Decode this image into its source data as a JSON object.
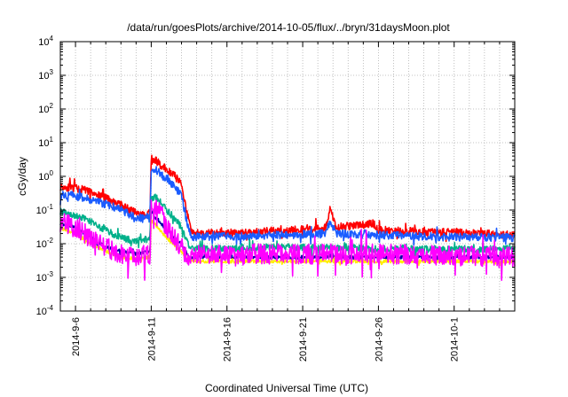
{
  "chart_data": {
    "type": "line",
    "title": "/data/run/goesPlots/archive/2014-10-05/flux/../bryn/31daysMoon.plot",
    "xlabel": "Coordinated Universal Time (UTC)",
    "ylabel": "cGy/day",
    "x_scale": "time",
    "xlim": [
      "2014-09-05",
      "2014-10-05"
    ],
    "y_scale": "log",
    "ylim": [
      0.0001,
      10000
    ],
    "y_ticks": [
      {
        "value": 0.0001,
        "base": "10",
        "exp": "-4"
      },
      {
        "value": 0.001,
        "base": "10",
        "exp": "-3"
      },
      {
        "value": 0.01,
        "base": "10",
        "exp": "-2"
      },
      {
        "value": 0.1,
        "base": "10",
        "exp": "-1"
      },
      {
        "value": 1,
        "base": "10",
        "exp": "0"
      },
      {
        "value": 10,
        "base": "10",
        "exp": "1"
      },
      {
        "value": 100,
        "base": "10",
        "exp": "2"
      },
      {
        "value": 1000,
        "base": "10",
        "exp": "3"
      },
      {
        "value": 10000,
        "base": "10",
        "exp": "4"
      }
    ],
    "x_ticks": [
      {
        "value": "2014-09-06",
        "label": "2014-9-6"
      },
      {
        "value": "2014-09-11",
        "label": "2014-9-11"
      },
      {
        "value": "2014-09-16",
        "label": "2014-9-16"
      },
      {
        "value": "2014-09-21",
        "label": "2014-9-21"
      },
      {
        "value": "2014-09-26",
        "label": "2014-9-26"
      },
      {
        "value": "2014-10-01",
        "label": "2014-10-1"
      }
    ],
    "grid": true,
    "legend": "none",
    "series": [
      {
        "color": "#ff0000",
        "jitter": 0.12,
        "seed": 11,
        "points": [
          [
            "2014-09-05",
            0.5
          ],
          [
            "2014-09-06",
            0.45
          ],
          [
            "2014-09-07",
            0.35
          ],
          [
            "2014-09-08",
            0.22
          ],
          [
            "2014-09-09",
            0.14
          ],
          [
            "2014-09-10",
            0.08
          ],
          [
            "2014-09-10T12:00",
            0.07
          ],
          [
            "2014-09-10T22:00",
            0.09
          ],
          [
            "2014-09-11",
            2.5
          ],
          [
            "2014-09-11T06:00",
            3.2
          ],
          [
            "2014-09-11T12:00",
            2.4
          ],
          [
            "2014-09-11T18:00",
            1.9
          ],
          [
            "2014-09-12",
            1.6
          ],
          [
            "2014-09-12T12:00",
            1.1
          ],
          [
            "2014-09-13",
            0.6
          ],
          [
            "2014-09-13T08:00",
            0.09
          ],
          [
            "2014-09-13T16:00",
            0.022
          ],
          [
            "2014-09-14",
            0.02
          ],
          [
            "2014-09-18",
            0.022
          ],
          [
            "2014-09-22T12:00",
            0.03
          ],
          [
            "2014-09-22T20:00",
            0.12
          ],
          [
            "2014-09-23T04:00",
            0.03
          ],
          [
            "2014-09-25T16:00",
            0.04
          ],
          [
            "2014-09-26",
            0.025
          ],
          [
            "2014-09-30",
            0.022
          ],
          [
            "2014-10-05",
            0.018
          ]
        ]
      },
      {
        "color": "#1a5cff",
        "jitter": 0.12,
        "seed": 23,
        "points": [
          [
            "2014-09-05",
            0.28
          ],
          [
            "2014-09-06",
            0.26
          ],
          [
            "2014-09-07",
            0.2
          ],
          [
            "2014-09-08",
            0.15
          ],
          [
            "2014-09-09",
            0.1
          ],
          [
            "2014-09-10",
            0.06
          ],
          [
            "2014-09-10T12:00",
            0.055
          ],
          [
            "2014-09-10T22:00",
            0.07
          ],
          [
            "2014-09-11",
            1.5
          ],
          [
            "2014-09-11T06:00",
            1.8
          ],
          [
            "2014-09-11T12:00",
            1.3
          ],
          [
            "2014-09-11T18:00",
            1.0
          ],
          [
            "2014-09-12",
            0.8
          ],
          [
            "2014-09-12T12:00",
            0.5
          ],
          [
            "2014-09-13",
            0.28
          ],
          [
            "2014-09-13T08:00",
            0.05
          ],
          [
            "2014-09-13T16:00",
            0.015
          ],
          [
            "2014-09-14",
            0.016
          ],
          [
            "2014-09-18",
            0.017
          ],
          [
            "2014-09-22T12:00",
            0.02
          ],
          [
            "2014-09-22T20:00",
            0.05
          ],
          [
            "2014-09-23T04:00",
            0.02
          ],
          [
            "2014-09-26",
            0.018
          ],
          [
            "2014-09-30",
            0.016
          ],
          [
            "2014-10-05",
            0.015
          ]
        ]
      },
      {
        "color": "#00b08a",
        "jitter": 0.1,
        "seed": 37,
        "points": [
          [
            "2014-09-05",
            0.09
          ],
          [
            "2014-09-06",
            0.07
          ],
          [
            "2014-09-07",
            0.045
          ],
          [
            "2014-09-08",
            0.025
          ],
          [
            "2014-09-09",
            0.015
          ],
          [
            "2014-09-10",
            0.012
          ],
          [
            "2014-09-10T22:00",
            0.014
          ],
          [
            "2014-09-11",
            0.2
          ],
          [
            "2014-09-11T06:00",
            0.25
          ],
          [
            "2014-09-11T18:00",
            0.15
          ],
          [
            "2014-09-12",
            0.1
          ],
          [
            "2014-09-12T12:00",
            0.06
          ],
          [
            "2014-09-13",
            0.03
          ],
          [
            "2014-09-13T12:00",
            0.008
          ],
          [
            "2014-09-14",
            0.007
          ],
          [
            "2014-09-20",
            0.008
          ],
          [
            "2014-09-26",
            0.007
          ],
          [
            "2014-10-05",
            0.007
          ]
        ]
      },
      {
        "color": "#0000a8",
        "jitter": 0.05,
        "seed": 41,
        "points": [
          [
            "2014-09-05",
            0.04
          ],
          [
            "2014-09-06",
            0.03
          ],
          [
            "2014-09-07",
            0.016
          ],
          [
            "2014-09-08",
            0.008
          ],
          [
            "2014-09-09",
            0.006
          ],
          [
            "2014-09-10",
            0.005
          ],
          [
            "2014-09-10T22:00",
            0.006
          ],
          [
            "2014-09-11",
            0.08
          ],
          [
            "2014-09-11T12:00",
            0.05
          ],
          [
            "2014-09-12",
            0.025
          ],
          [
            "2014-09-13",
            0.01
          ],
          [
            "2014-09-13T12:00",
            0.004
          ],
          [
            "2014-09-14",
            0.004
          ],
          [
            "2014-10-05",
            0.004
          ]
        ]
      },
      {
        "color": "#ffee00",
        "jitter": 0.05,
        "seed": 53,
        "points": [
          [
            "2014-09-05",
            0.03
          ],
          [
            "2014-09-06",
            0.02
          ],
          [
            "2014-09-07",
            0.01
          ],
          [
            "2014-09-08",
            0.006
          ],
          [
            "2014-09-09",
            0.004
          ],
          [
            "2014-09-10",
            0.0035
          ],
          [
            "2014-09-10T22:00",
            0.004
          ],
          [
            "2014-09-11",
            0.05
          ],
          [
            "2014-09-12",
            0.015
          ],
          [
            "2014-09-13",
            0.006
          ],
          [
            "2014-09-13T12:00",
            0.003
          ],
          [
            "2014-10-05",
            0.003
          ]
        ]
      },
      {
        "color": "#ff00ff",
        "jitter": 0.3,
        "seed": 67,
        "points": [
          [
            "2014-09-05",
            0.045
          ],
          [
            "2014-09-06",
            0.03
          ],
          [
            "2014-09-07",
            0.015
          ],
          [
            "2014-09-08",
            0.008
          ],
          [
            "2014-09-09",
            0.005
          ],
          [
            "2014-09-10",
            0.004
          ],
          [
            "2014-09-10T22:00",
            0.005
          ],
          [
            "2014-09-11",
            0.1
          ],
          [
            "2014-09-11T06:00",
            0.12
          ],
          [
            "2014-09-11T18:00",
            0.06
          ],
          [
            "2014-09-12",
            0.03
          ],
          [
            "2014-09-12T12:00",
            0.015
          ],
          [
            "2014-09-13",
            0.008
          ],
          [
            "2014-09-13T12:00",
            0.003
          ],
          [
            "2014-09-14",
            0.005
          ],
          [
            "2014-09-20",
            0.005
          ],
          [
            "2014-09-26",
            0.005
          ],
          [
            "2014-10-05",
            0.004
          ]
        ]
      }
    ]
  }
}
